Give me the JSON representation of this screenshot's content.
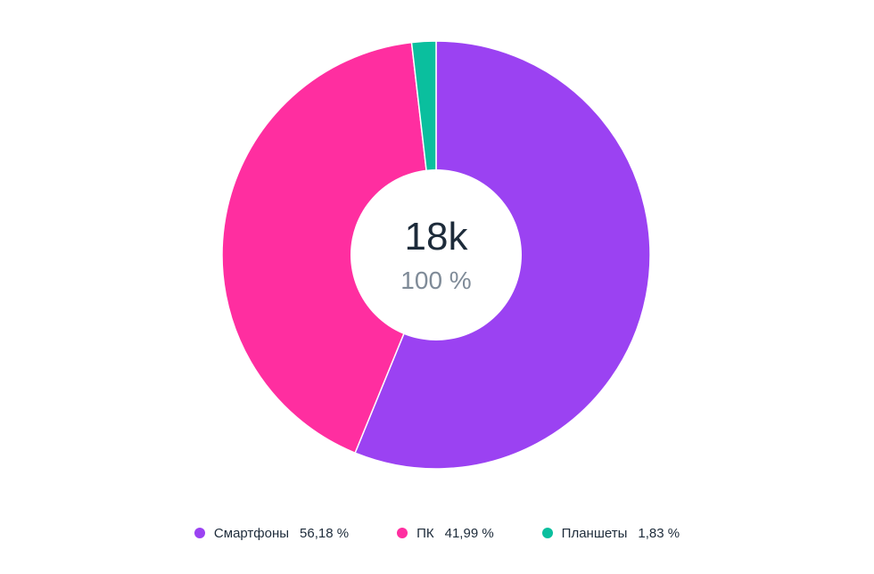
{
  "chart_data": {
    "type": "pie",
    "donut": true,
    "center": {
      "value": "18k",
      "percent": "100 %"
    },
    "slices": [
      {
        "label": "Смартфоны",
        "value": 56.18,
        "display": "56,18 %",
        "color": "#9b42f2"
      },
      {
        "label": "ПК",
        "value": 41.99,
        "display": "41,99 %",
        "color": "#ff2ea0"
      },
      {
        "label": "Планшеты",
        "value": 1.83,
        "display": "1,83 %",
        "color": "#0abf9e"
      }
    ],
    "legend_position": "bottom"
  }
}
